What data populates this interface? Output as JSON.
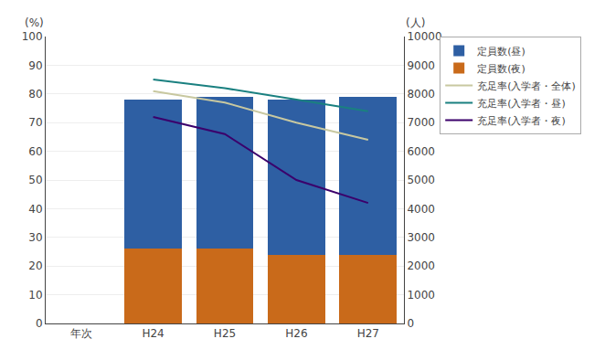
{
  "chart_data": {
    "type": "bar",
    "stacked": true,
    "categories": [
      "年次",
      "H24",
      "H25",
      "H26",
      "H27"
    ],
    "series": [
      {
        "name": "定員数(夜)",
        "type": "bar",
        "color": "#C96A1A",
        "values": [
          null,
          26,
          26,
          24,
          24
        ]
      },
      {
        "name": "定員数(昼)",
        "type": "bar",
        "color": "#2E5FA3",
        "values": [
          null,
          52,
          53,
          54,
          55
        ]
      },
      {
        "name": "充足率(入学者・全体)",
        "type": "line",
        "color": "#C8C8A0",
        "values": [
          null,
          81,
          77,
          70,
          64
        ]
      },
      {
        "name": "充足率(入学者・昼)",
        "type": "line",
        "color": "#1A8080",
        "values": [
          null,
          85,
          82,
          78,
          74
        ]
      },
      {
        "name": "充足率(入学者・夜)",
        "type": "line",
        "color": "#3B006B",
        "values": [
          null,
          72,
          66,
          50,
          42
        ]
      }
    ],
    "ylabel": "(%)",
    "y2label": "(人)",
    "ylim": [
      0,
      100
    ],
    "yticks": [
      0,
      10,
      20,
      30,
      40,
      50,
      60,
      70,
      80,
      90,
      100
    ],
    "y2lim": [
      0,
      10000
    ],
    "y2ticks": [
      0,
      1000,
      2000,
      3000,
      4000,
      5000,
      6000,
      7000,
      8000,
      9000,
      10000
    ],
    "grid": true,
    "legend": "upper right"
  }
}
